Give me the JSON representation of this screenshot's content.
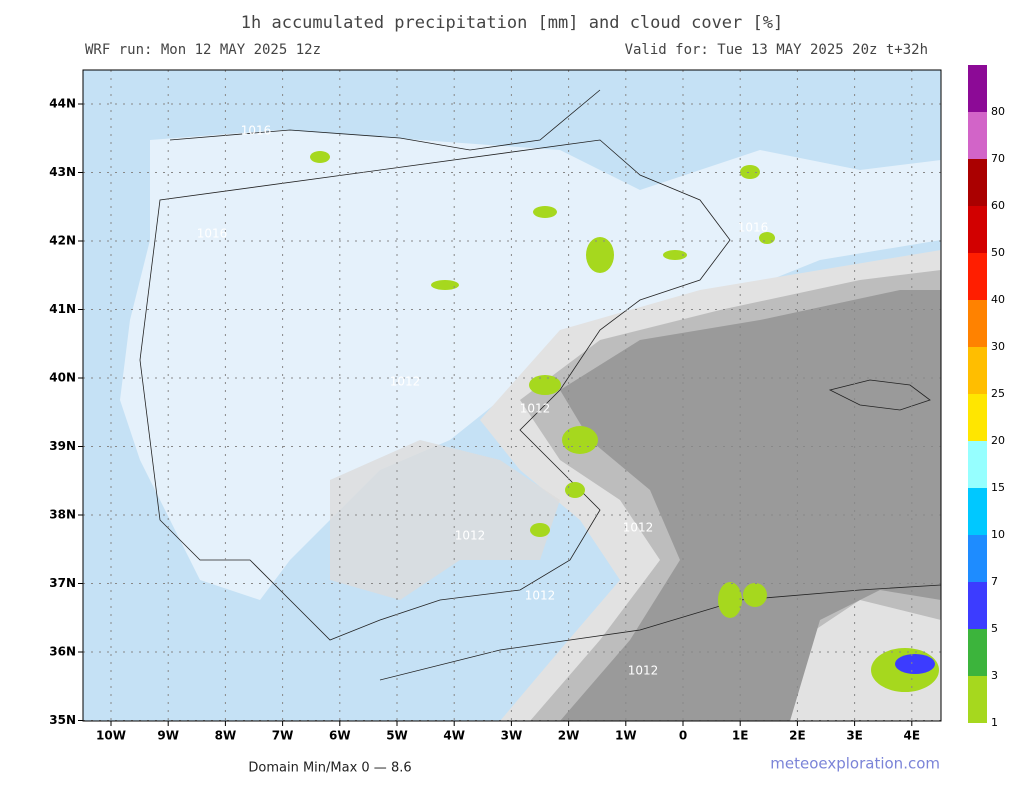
{
  "header": {
    "title": "1h accumulated precipitation [mm] and cloud cover [%]",
    "run": "WRF run: Mon 12 MAY 2025 12z",
    "valid": "Valid for: Tue 13 MAY 2025 20z  t+32h"
  },
  "map": {
    "lat_labels": [
      "44N",
      "43N",
      "42N",
      "41N",
      "40N",
      "39N",
      "38N",
      "37N",
      "36N",
      "35N"
    ],
    "lon_labels": [
      "10W",
      "9W",
      "8W",
      "7W",
      "6W",
      "5W",
      "4W",
      "3W",
      "2W",
      "1W",
      "0",
      "1E",
      "2E",
      "3E",
      "4E"
    ],
    "isobar_labels": [
      "1016",
      "1016",
      "1012",
      "1012",
      "1012",
      "1012",
      "1012",
      "1012",
      "1016"
    ]
  },
  "colorbar": {
    "levels": [
      1,
      3,
      5,
      7,
      10,
      15,
      20,
      25,
      30,
      40,
      50,
      60,
      70,
      80
    ],
    "colors": [
      "#a6d81e",
      "#3cb43c",
      "#3c3cff",
      "#1e8cff",
      "#00c8ff",
      "#96ffff",
      "#ffe600",
      "#ffbe00",
      "#ff8200",
      "#ff1e00",
      "#d20000",
      "#aa0000",
      "#d264c8",
      "#b428a0"
    ],
    "top_color": "#8c0a96"
  },
  "footer": {
    "minmax": "Domain Min/Max 0 — 8.6",
    "site": "meteoexploration.com"
  }
}
